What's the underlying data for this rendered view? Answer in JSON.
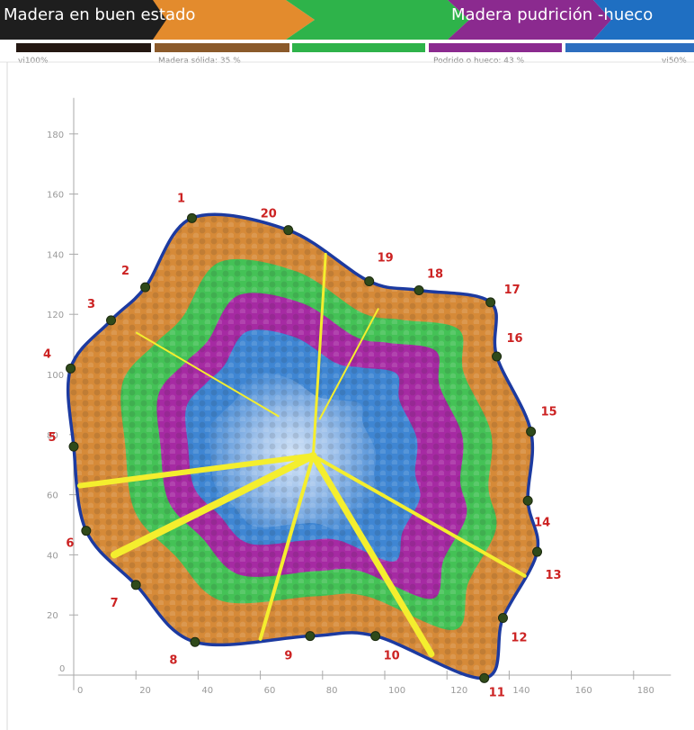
{
  "banner": {
    "left_label": "Madera en buen estado",
    "right_label": "Madera pudrición -hueco",
    "colors": [
      "#1e1e1e",
      "#e38b2d",
      "#2eb34a",
      "#8b2a8f",
      "#1f6fc2"
    ]
  },
  "legend_bar": {
    "colors": [
      "#241812",
      "#8b5a2b",
      "#2eb34a",
      "#8b2a8f",
      "#2d6ebf"
    ],
    "left_note": "vi100%",
    "solid_note": "Madera sólida: 35 %",
    "rot_note": "Podrido o hueco: 43 %",
    "right_note": "vi50%"
  },
  "axes": {
    "x_ticks": [
      "0",
      "20",
      "40",
      "60",
      "80",
      "100",
      "120",
      "140",
      "160",
      "180"
    ],
    "y_ticks": [
      "0",
      "20",
      "40",
      "60",
      "80",
      "100",
      "120",
      "140",
      "160",
      "180"
    ],
    "x_range": [
      0,
      190
    ],
    "y_range": [
      0,
      190
    ]
  },
  "sensor_points": [
    {
      "id": "1",
      "x": 38,
      "y": 152
    },
    {
      "id": "20",
      "x": 69,
      "y": 148
    },
    {
      "id": "19",
      "x": 95,
      "y": 131
    },
    {
      "id": "18",
      "x": 111,
      "y": 128
    },
    {
      "id": "17",
      "x": 134,
      "y": 124
    },
    {
      "id": "16",
      "x": 136,
      "y": 106
    },
    {
      "id": "15",
      "x": 147,
      "y": 81
    },
    {
      "id": "14",
      "x": 146,
      "y": 58
    },
    {
      "id": "13",
      "x": 149,
      "y": 41
    },
    {
      "id": "12",
      "x": 138,
      "y": 19
    },
    {
      "id": "11",
      "x": 132,
      "y": -1
    },
    {
      "id": "10",
      "x": 97,
      "y": 13
    },
    {
      "id": "9",
      "x": 76,
      "y": 13
    },
    {
      "id": "8",
      "x": 39,
      "y": 11
    },
    {
      "id": "7",
      "x": 20,
      "y": 30
    },
    {
      "id": "6",
      "x": 4,
      "y": 48
    },
    {
      "id": "5",
      "x": 0,
      "y": 76
    },
    {
      "id": "4",
      "x": -1,
      "y": 102
    },
    {
      "id": "3",
      "x": 12,
      "y": 118
    },
    {
      "id": "2",
      "x": 23,
      "y": 129
    }
  ],
  "center": {
    "x": 77,
    "y": 73
  },
  "colors": {
    "outline": "#1c3aa0",
    "crack_lines": "#f4ee2e",
    "point_number": "#cc2222",
    "bark": "#d68a38",
    "green_zone": "#44c256",
    "purple_zone": "#a62aa3",
    "blue_zone": "#3f86d3",
    "core": "#b8d3f0"
  }
}
